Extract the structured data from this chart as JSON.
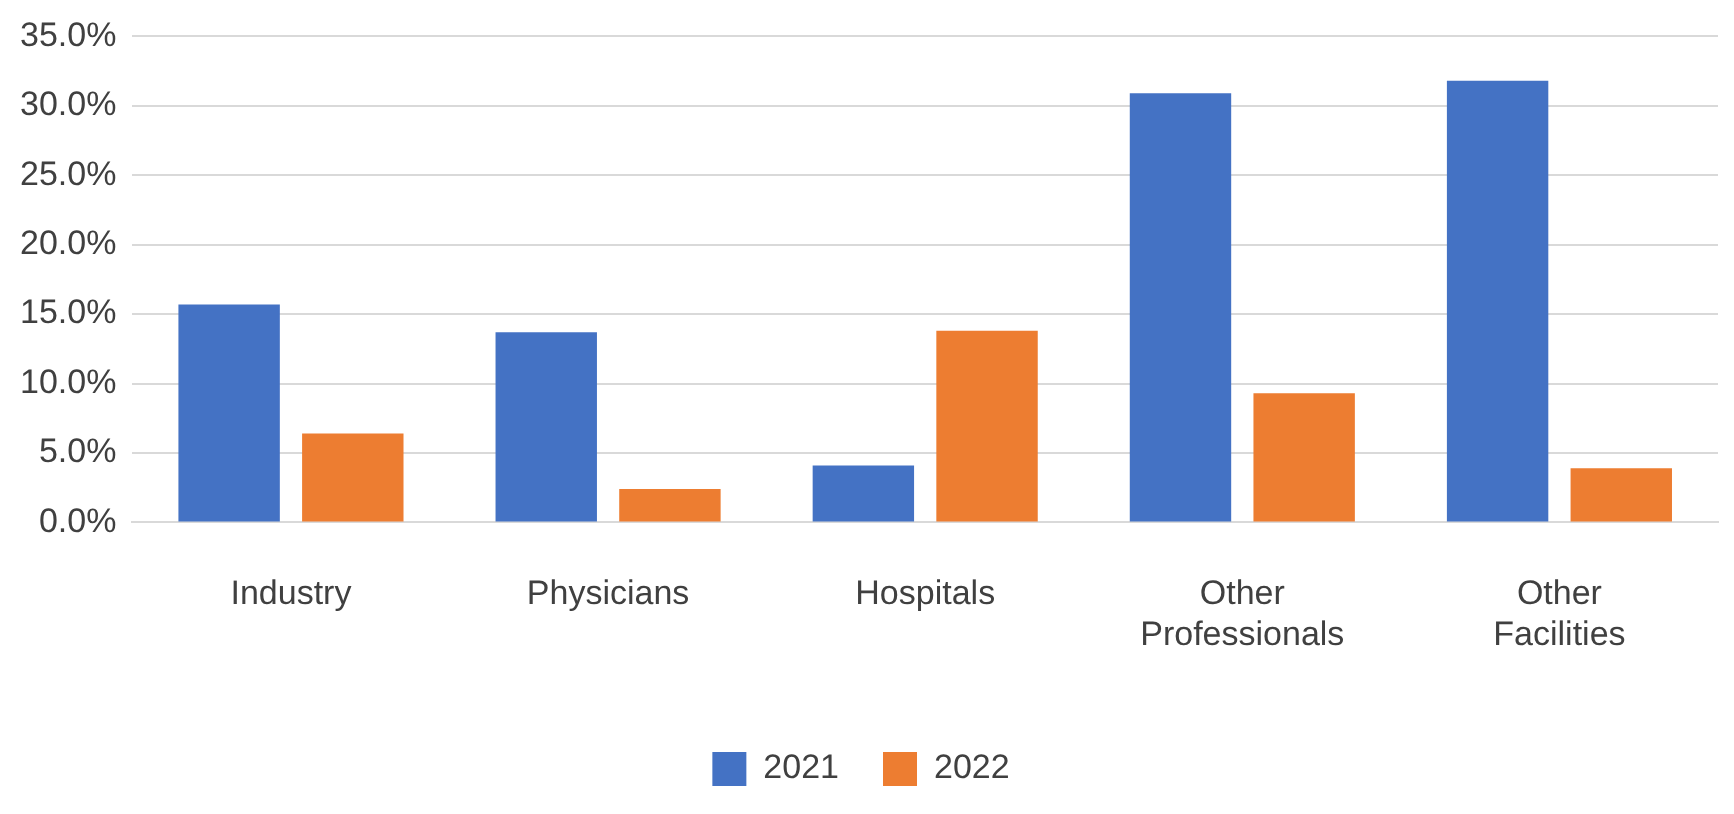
{
  "chart_data": {
    "type": "bar",
    "categories": [
      "Industry",
      "Physicians",
      "Hospitals",
      "Other Professionals",
      "Other Facilities"
    ],
    "series": [
      {
        "name": "2021",
        "color": "#4472c4",
        "values": [
          15.7,
          13.7,
          4.1,
          30.9,
          31.8
        ]
      },
      {
        "name": "2022",
        "color": "#ed7d31",
        "values": [
          6.4,
          2.4,
          13.8,
          9.3,
          3.9
        ]
      }
    ],
    "ylim": [
      0,
      35
    ],
    "yticks": [
      {
        "value": 0,
        "label": "0.0%"
      },
      {
        "value": 5,
        "label": "5.0%"
      },
      {
        "value": 10,
        "label": "10.0%"
      },
      {
        "value": 15,
        "label": "15.0%"
      },
      {
        "value": 20,
        "label": "20.0%"
      },
      {
        "value": 25,
        "label": "25.0%"
      },
      {
        "value": 30,
        "label": "30.0%"
      },
      {
        "value": 35,
        "label": "35.0%"
      }
    ],
    "grid": "y",
    "legend": "bottom"
  }
}
